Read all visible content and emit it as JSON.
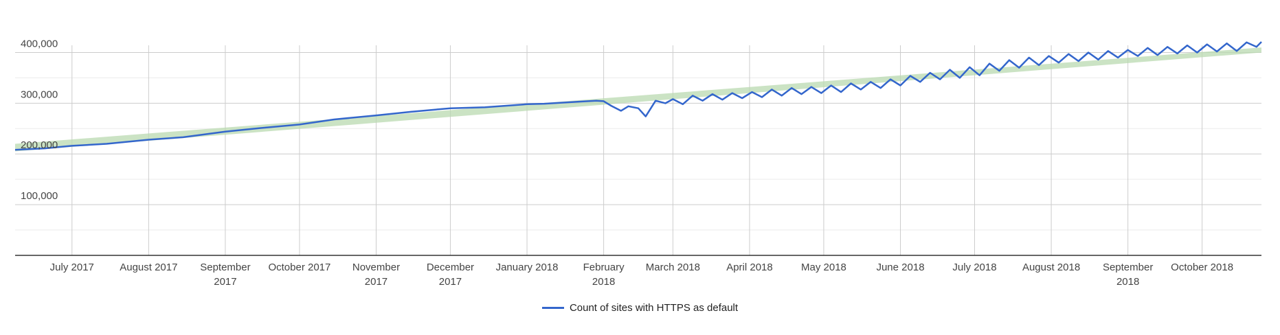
{
  "colors": {
    "line": "#3366cc",
    "band": "#b9dab0",
    "grid": "#cccccc",
    "minor_grid": "#ebebeb",
    "axis": "#333333"
  },
  "chart_data": {
    "type": "line",
    "title": "",
    "xlabel": "",
    "ylabel": "",
    "ylim": [
      0,
      425000
    ],
    "x_range": [
      "2017-06-08",
      "2018-10-25"
    ],
    "y_ticks": [
      100000,
      200000,
      300000,
      400000
    ],
    "y_tick_labels": [
      "100,000",
      "200,000",
      "300,000",
      "400,000"
    ],
    "x_ticks": [
      {
        "date": "2017-07-01",
        "label": [
          "July 2017"
        ]
      },
      {
        "date": "2017-08-01",
        "label": [
          "August 2017"
        ]
      },
      {
        "date": "2017-09-01",
        "label": [
          "September",
          "2017"
        ]
      },
      {
        "date": "2017-10-01",
        "label": [
          "October 2017"
        ]
      },
      {
        "date": "2017-11-01",
        "label": [
          "November",
          "2017"
        ]
      },
      {
        "date": "2017-12-01",
        "label": [
          "December",
          "2017"
        ]
      },
      {
        "date": "2018-01-01",
        "label": [
          "January 2018"
        ]
      },
      {
        "date": "2018-02-01",
        "label": [
          "February",
          "2018"
        ]
      },
      {
        "date": "2018-03-01",
        "label": [
          "March 2018"
        ]
      },
      {
        "date": "2018-04-01",
        "label": [
          "April 2018"
        ]
      },
      {
        "date": "2018-05-01",
        "label": [
          "May 2018"
        ]
      },
      {
        "date": "2018-06-01",
        "label": [
          "June 2018"
        ]
      },
      {
        "date": "2018-07-01",
        "label": [
          "July 2018"
        ]
      },
      {
        "date": "2018-08-01",
        "label": [
          "August 2018"
        ]
      },
      {
        "date": "2018-09-01",
        "label": [
          "September",
          "2018"
        ]
      },
      {
        "date": "2018-10-01",
        "label": [
          "October 2018"
        ]
      }
    ],
    "band": {
      "x": [
        "2017-06-08",
        "2018-10-25"
      ],
      "upper": [
        220000,
        410000
      ],
      "lower": [
        205000,
        400000
      ]
    },
    "series": [
      {
        "name": "Count of sites with HTTPS as default",
        "x": [
          "2017-06-08",
          "2017-06-20",
          "2017-07-01",
          "2017-07-15",
          "2017-08-01",
          "2017-08-15",
          "2017-09-01",
          "2017-09-15",
          "2017-10-01",
          "2017-10-15",
          "2017-11-01",
          "2017-11-15",
          "2017-12-01",
          "2017-12-15",
          "2018-01-01",
          "2018-01-08",
          "2018-01-15",
          "2018-01-22",
          "2018-01-29",
          "2018-02-01",
          "2018-02-04",
          "2018-02-08",
          "2018-02-11",
          "2018-02-15",
          "2018-02-18",
          "2018-02-22",
          "2018-02-26",
          "2018-03-01",
          "2018-03-05",
          "2018-03-09",
          "2018-03-13",
          "2018-03-17",
          "2018-03-21",
          "2018-03-25",
          "2018-03-29",
          "2018-04-02",
          "2018-04-06",
          "2018-04-10",
          "2018-04-14",
          "2018-04-18",
          "2018-04-22",
          "2018-04-26",
          "2018-04-30",
          "2018-05-04",
          "2018-05-08",
          "2018-05-12",
          "2018-05-16",
          "2018-05-20",
          "2018-05-24",
          "2018-05-28",
          "2018-06-01",
          "2018-06-05",
          "2018-06-09",
          "2018-06-13",
          "2018-06-17",
          "2018-06-21",
          "2018-06-25",
          "2018-06-29",
          "2018-07-03",
          "2018-07-07",
          "2018-07-11",
          "2018-07-15",
          "2018-07-19",
          "2018-07-23",
          "2018-07-27",
          "2018-07-31",
          "2018-08-04",
          "2018-08-08",
          "2018-08-12",
          "2018-08-16",
          "2018-08-20",
          "2018-08-24",
          "2018-08-28",
          "2018-09-01",
          "2018-09-05",
          "2018-09-09",
          "2018-09-13",
          "2018-09-17",
          "2018-09-21",
          "2018-09-25",
          "2018-09-29",
          "2018-10-03",
          "2018-10-07",
          "2018-10-11",
          "2018-10-15",
          "2018-10-19",
          "2018-10-23",
          "2018-10-25"
        ],
        "y": [
          208000,
          211000,
          216000,
          220000,
          228000,
          233000,
          244000,
          251000,
          258000,
          268000,
          276000,
          283000,
          290000,
          292000,
          298000,
          299000,
          301000,
          303000,
          305000,
          304000,
          295000,
          285000,
          294000,
          290000,
          274000,
          305000,
          300000,
          308000,
          298000,
          315000,
          305000,
          318000,
          307000,
          320000,
          310000,
          322000,
          312000,
          327000,
          315000,
          330000,
          318000,
          332000,
          320000,
          335000,
          322000,
          339000,
          327000,
          342000,
          330000,
          347000,
          335000,
          354000,
          342000,
          360000,
          347000,
          366000,
          350000,
          371000,
          355000,
          378000,
          364000,
          385000,
          370000,
          390000,
          375000,
          393000,
          380000,
          397000,
          383000,
          400000,
          386000,
          403000,
          390000,
          405000,
          393000,
          409000,
          395000,
          411000,
          398000,
          414000,
          400000,
          416000,
          402000,
          418000,
          403000,
          420000,
          411000,
          421000
        ]
      }
    ],
    "legend_position": "bottom"
  }
}
